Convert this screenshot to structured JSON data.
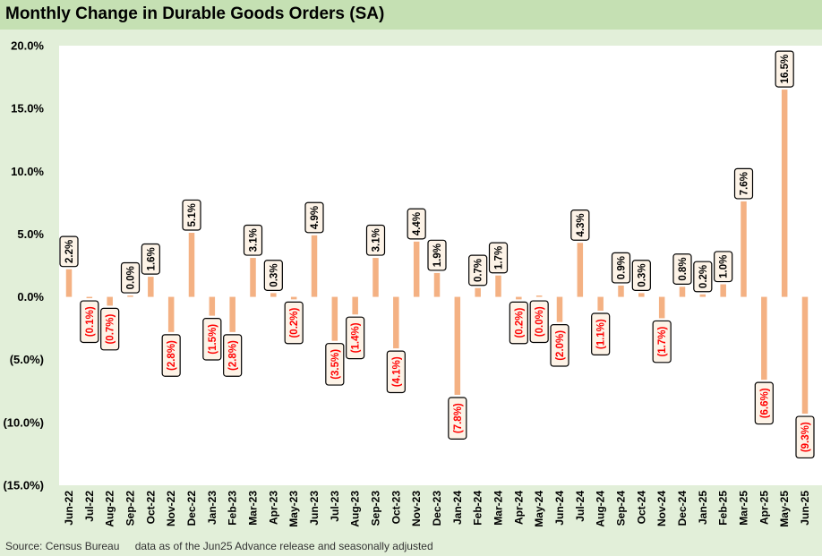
{
  "title": "Monthly Change in Durable Goods Orders (SA)",
  "footer": {
    "source": "Source: Census Bureau",
    "note": "data as of the Jun25 Advance release and seasonally adjusted"
  },
  "colors": {
    "bar": "#f4b183",
    "positive_label": "#000000",
    "negative_label": "#ff0000",
    "title_bar": "#c5e0b3",
    "background": "#e2efd9",
    "plot": "#ffffff"
  },
  "chart_data": {
    "type": "bar",
    "title": "Monthly Change in Durable Goods Orders (SA)",
    "xlabel": "",
    "ylabel": "",
    "ylim": [
      -15,
      20
    ],
    "yticks": [
      20,
      15,
      10,
      5,
      0,
      -5,
      -10,
      -15
    ],
    "ytick_labels": [
      "20.0%",
      "15.0%",
      "10.0%",
      "5.0%",
      "0.0%",
      "(5.0%)",
      "(10.0%)",
      "(15.0%)"
    ],
    "grid": false,
    "categories": [
      "Jun-22",
      "Jul-22",
      "Aug-22",
      "Sep-22",
      "Oct-22",
      "Nov-22",
      "Dec-22",
      "Jan-23",
      "Feb-23",
      "Mar-23",
      "Apr-23",
      "May-23",
      "Jun-23",
      "Jul-23",
      "Aug-23",
      "Sep-23",
      "Oct-23",
      "Nov-23",
      "Dec-23",
      "Jan-24",
      "Feb-24",
      "Mar-24",
      "Apr-24",
      "May-24",
      "Jun-24",
      "Jul-24",
      "Aug-24",
      "Sep-24",
      "Oct-24",
      "Nov-24",
      "Dec-24",
      "Jan-25",
      "Feb-25",
      "Mar-25",
      "Apr-25",
      "May-25",
      "Jun-25"
    ],
    "values": [
      2.2,
      -0.1,
      -0.7,
      0.0,
      1.6,
      -2.8,
      5.1,
      -1.5,
      -2.8,
      3.1,
      0.3,
      -0.2,
      4.9,
      -3.5,
      -1.4,
      3.1,
      -4.1,
      4.4,
      1.9,
      -7.8,
      0.7,
      1.7,
      -0.2,
      0.0,
      -2.0,
      4.3,
      -1.1,
      0.9,
      0.3,
      -1.7,
      0.8,
      0.2,
      1.0,
      7.6,
      -6.6,
      16.5,
      -9.3
    ],
    "data_labels": [
      "2.2%",
      "(0.1%)",
      "(0.7%)",
      "0.0%",
      "1.6%",
      "(2.8%)",
      "5.1%",
      "(1.5%)",
      "(2.8%)",
      "3.1%",
      "0.3%",
      "(0.2%)",
      "4.9%",
      "(3.5%)",
      "(1.4%)",
      "3.1%",
      "(4.1%)",
      "4.4%",
      "1.9%",
      "(7.8%)",
      "0.7%",
      "1.7%",
      "(0.2%)",
      "(0.0%)",
      "(2.0%)",
      "4.3%",
      "(1.1%)",
      "0.9%",
      "0.3%",
      "(1.7%)",
      "0.8%",
      "0.2%",
      "1.0%",
      "7.6%",
      "(6.6%)",
      "16.5%",
      "(9.3%)"
    ]
  }
}
